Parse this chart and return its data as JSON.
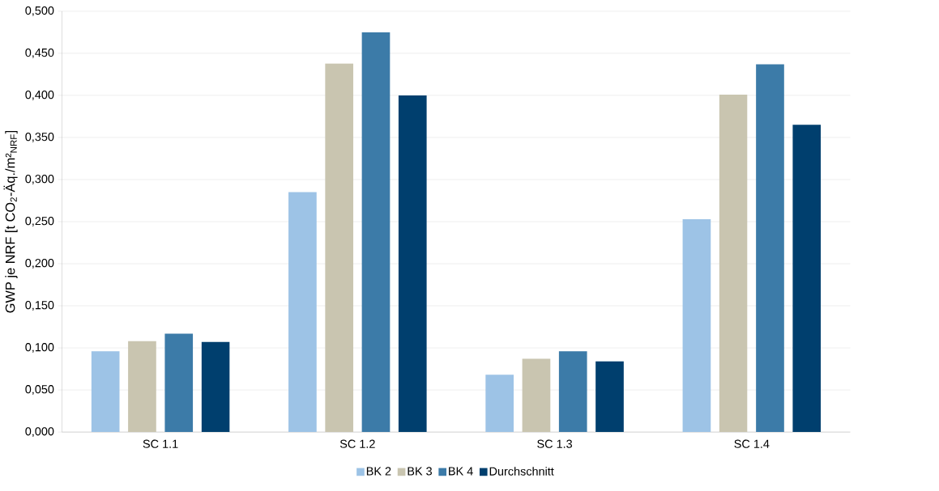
{
  "chart_data": {
    "type": "bar",
    "ylabel": "GWP je NRF [t CO$_{2}$-Äq./m²$_{NRF}$]",
    "categories": [
      "SC 1.1",
      "SC 1.2",
      "SC 1.3",
      "SC 1.4"
    ],
    "series": [
      {
        "name": "BK 2",
        "color": "#9dc3e6",
        "values": [
          0.096,
          0.285,
          0.068,
          0.253
        ]
      },
      {
        "name": "BK 3",
        "color": "#c9c5b0",
        "values": [
          0.108,
          0.438,
          0.087,
          0.401
        ]
      },
      {
        "name": "BK 4",
        "color": "#3c7ba8",
        "values": [
          0.117,
          0.475,
          0.096,
          0.437
        ]
      },
      {
        "name": "Durchschnitt",
        "color": "#003f6e",
        "values": [
          0.107,
          0.4,
          0.084,
          0.365
        ]
      }
    ],
    "ylim": [
      0,
      0.5
    ],
    "yticks": [
      {
        "value": 0,
        "label": "0,000"
      },
      {
        "value": 0.05,
        "label": "0,050"
      },
      {
        "value": 0.1,
        "label": "0,100"
      },
      {
        "value": 0.15,
        "label": "0,150"
      },
      {
        "value": 0.2,
        "label": "0,200"
      },
      {
        "value": 0.25,
        "label": "0,250"
      },
      {
        "value": 0.3,
        "label": "0,300"
      },
      {
        "value": 0.35,
        "label": "0,350"
      },
      {
        "value": 0.4,
        "label": "0,400"
      },
      {
        "value": 0.45,
        "label": "0,450"
      },
      {
        "value": 0.5,
        "label": "0,500"
      }
    ],
    "grid": "y",
    "legend": "bottom"
  }
}
